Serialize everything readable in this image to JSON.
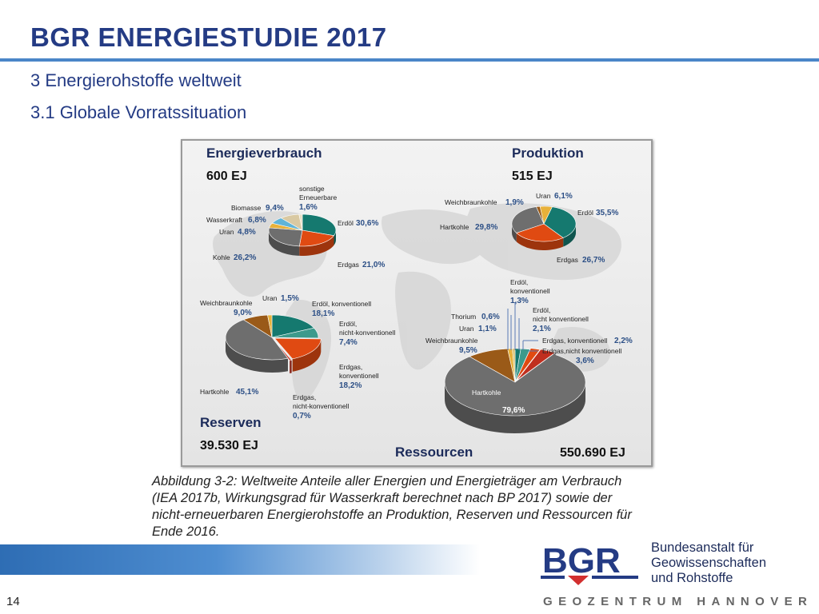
{
  "slide": {
    "title": "BGR ENERGIESTUDIE 2017",
    "subtitle1": "3 Energierohstoffe weltweit",
    "subtitle2": "3.1 Globale Vorratssituation",
    "caption_lines": [
      "Abbildung 3-2: Weltweite Anteile aller Energien und Energieträger am Verbrauch",
      "(IEA 2017b, Wirkungsgrad für Wasserkraft berechnet nach BP 2017) sowie der",
      "nicht-erneuerbaren Energierohstoffe an Produktion, Reserven und Ressourcen für",
      "Ende 2016."
    ],
    "page_number": "14"
  },
  "footer": {
    "logo_text": "BGR",
    "org_lines": [
      "Bundesanstalt für",
      "Geowissenschaften",
      "und Rohstoffe"
    ],
    "geozentrum": "GEOZENTRUM HANNOVER"
  },
  "colors": {
    "title": "#243b84",
    "heading": "#1c2b5a",
    "value_label": "#2c4f86",
    "oil_conv": "#15796f",
    "oil_unconv": "#3d9a8c",
    "gas_conv": "#e04a12",
    "gas_unconv": "#c02f1f",
    "coal": "#6e6e6e",
    "lignite": "#9a5a18",
    "uranium": "#e8b13a",
    "thorium": "#d8c070",
    "hydro": "#5fb4d8",
    "biomass": "#d9c9a2",
    "other_renew": "#e9dfc4"
  },
  "chart_data": [
    {
      "type": "pie",
      "title": "Energieverbrauch",
      "total": "600 EJ",
      "slices": [
        {
          "name": "Erdöl",
          "value": 30.6,
          "label": "30,6%"
        },
        {
          "name": "Erdgas",
          "value": 21.0,
          "label": "21,0%"
        },
        {
          "name": "Kohle",
          "value": 26.2,
          "label": "26,2%"
        },
        {
          "name": "Uran",
          "value": 4.8,
          "label": "4,8%"
        },
        {
          "name": "Wasserkraft",
          "value": 6.8,
          "label": "6,8%"
        },
        {
          "name": "Biomasse",
          "value": 9.4,
          "label": "9,4%"
        },
        {
          "name": "sonstige Erneuerbare",
          "value": 1.6,
          "label": "1,6%"
        }
      ]
    },
    {
      "type": "pie",
      "title": "Produktion",
      "total": "515 EJ",
      "slices": [
        {
          "name": "Erdöl",
          "value": 35.5,
          "label": "35,5%"
        },
        {
          "name": "Erdgas",
          "value": 26.7,
          "label": "26,7%"
        },
        {
          "name": "Hartkohle",
          "value": 29.8,
          "label": "29,8%"
        },
        {
          "name": "Weichbraunkohle",
          "value": 1.9,
          "label": "1,9%"
        },
        {
          "name": "Uran",
          "value": 6.1,
          "label": "6,1%"
        }
      ]
    },
    {
      "type": "pie",
      "title": "Reserven",
      "total": "39.530 EJ",
      "slices": [
        {
          "name": "Erdöl, konventionell",
          "value": 18.1,
          "label": "18,1%"
        },
        {
          "name": "Erdöl, nicht-konventionell",
          "value": 7.4,
          "label": "7,4%"
        },
        {
          "name": "Erdgas, konventionell",
          "value": 18.2,
          "label": "18,2%"
        },
        {
          "name": "Erdgas, nicht-konventionell",
          "value": 0.7,
          "label": "0,7%"
        },
        {
          "name": "Hartkohle",
          "value": 45.1,
          "label": "45,1%"
        },
        {
          "name": "Weichbraunkohle",
          "value": 9.0,
          "label": "9,0%"
        },
        {
          "name": "Uran",
          "value": 1.5,
          "label": "1,5%"
        }
      ]
    },
    {
      "type": "pie",
      "title": "Ressourcen",
      "total": "550.690 EJ",
      "slices": [
        {
          "name": "Erdöl, konventionell",
          "value": 1.3,
          "label": "1,3%"
        },
        {
          "name": "Erdöl, nicht konventionell",
          "value": 2.1,
          "label": "2,1%"
        },
        {
          "name": "Erdgas, konventionell",
          "value": 2.2,
          "label": "2,2%"
        },
        {
          "name": "Erdgas,nicht konventionell",
          "value": 3.6,
          "label": "3,6%"
        },
        {
          "name": "Hartkohle",
          "value": 79.6,
          "label": "79,6%"
        },
        {
          "name": "Weichbraunkohle",
          "value": 9.5,
          "label": "9,5%"
        },
        {
          "name": "Uran",
          "value": 1.1,
          "label": "1,1%"
        },
        {
          "name": "Thorium",
          "value": 0.6,
          "label": "0,6%"
        }
      ]
    }
  ]
}
